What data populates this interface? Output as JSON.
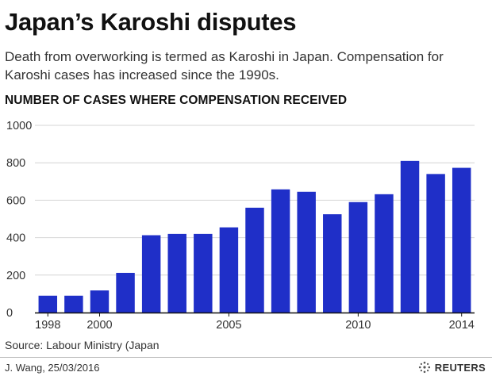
{
  "header": {
    "title": "Japan’s Karoshi disputes",
    "subtitle": "Death from overworking is termed as Karoshi in Japan. Compensation for Karoshi cases has increased since the 1990s."
  },
  "chart_heading": "NUMBER OF CASES WHERE COMPENSATION RECEIVED",
  "footer": {
    "source": "Source: Labour Ministry (Japan",
    "credit": "J. Wang,  25/03/2016",
    "brand": "REUTERS",
    "brand_icon": "reuters-logo-icon"
  },
  "colors": {
    "bar": "#1f2fc8",
    "grid": "#d4d4d4",
    "axis": "#111111"
  },
  "chart_data": {
    "type": "bar",
    "title": "NUMBER OF CASES WHERE COMPENSATION RECEIVED",
    "xlabel": "",
    "ylabel": "",
    "categories": [
      "1998",
      "1999",
      "2000",
      "2001",
      "2002",
      "2003",
      "2004",
      "2005",
      "2006",
      "2007",
      "2008",
      "2009",
      "2010",
      "2011",
      "2012",
      "2013",
      "2014"
    ],
    "x_tick_labels": [
      "1998",
      "2000",
      "2005",
      "2010",
      "2014"
    ],
    "values": [
      90,
      90,
      118,
      212,
      413,
      420,
      420,
      455,
      560,
      658,
      645,
      525,
      590,
      632,
      810,
      740,
      773
    ],
    "ylim": [
      0,
      1000
    ],
    "y_ticks": [
      0,
      200,
      400,
      600,
      800,
      1000
    ],
    "grid": true
  }
}
